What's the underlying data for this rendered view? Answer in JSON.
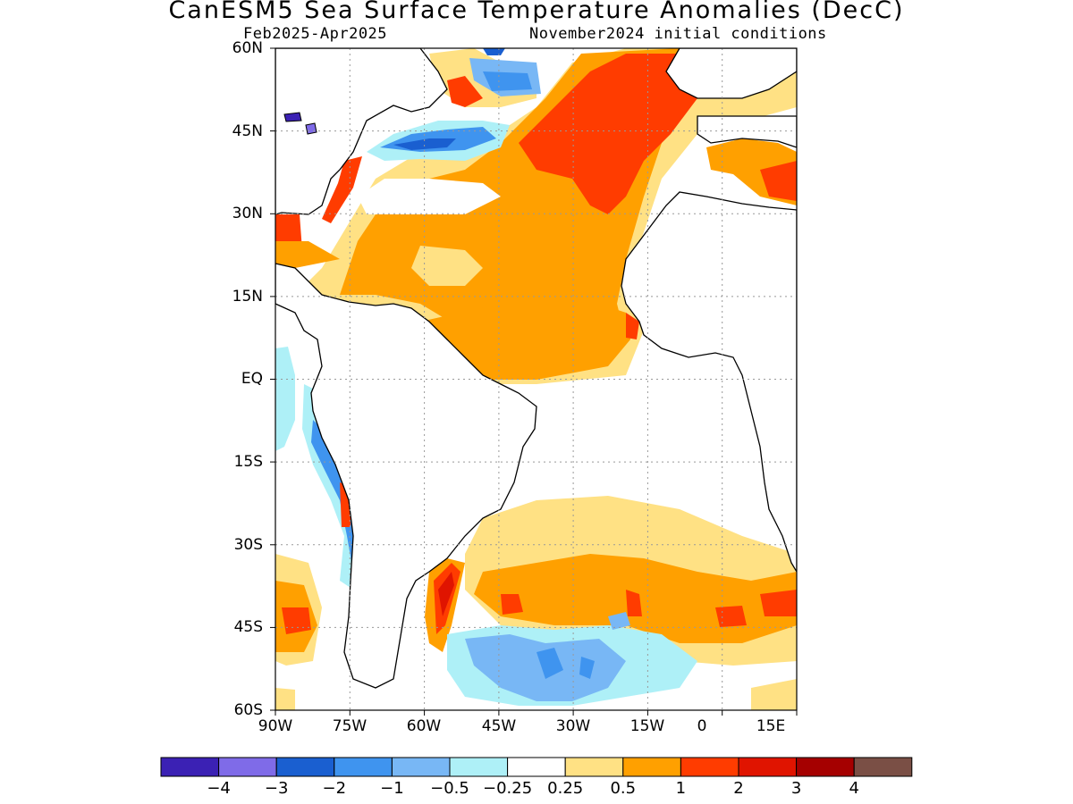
{
  "title": "CanESM5 Sea Surface Temperature Anomalies (DecC)",
  "subtitle_left": "Feb2025-Apr2025",
  "subtitle_right": "November2024 initial conditions",
  "lat_labels": [
    "60N",
    "45N",
    "30N",
    "15N",
    "EQ",
    "15S",
    "30S",
    "45S",
    "60S"
  ],
  "lon_labels": [
    "90W",
    "75W",
    "60W",
    "45W",
    "30W",
    "15W",
    "0",
    "15E"
  ],
  "colorbar": {
    "colors": [
      "#3b21b4",
      "#7f6be8",
      "#1a5fd0",
      "#3f94ef",
      "#78b7f5",
      "#aef0f7",
      "#ffffff",
      "#ffe184",
      "#ffa000",
      "#ff3c00",
      "#e01400",
      "#a50000",
      "#7a4f45"
    ],
    "labels": [
      "-4",
      "-3",
      "-2",
      "-1",
      "-0.5",
      "-0.25",
      "0.25",
      "0.5",
      "1",
      "2",
      "3",
      "4"
    ]
  },
  "map": {
    "lon_range": [
      -90,
      15
    ],
    "lat_range": [
      -60,
      60
    ],
    "land_color": "#ffffff",
    "grid": "dotted",
    "dominant_anomalies": [
      {
        "region": "North Atlantic subtropics",
        "level": "0.5 to 2"
      },
      {
        "region": "Tropical North Atlantic",
        "level": "0.5 to 1"
      },
      {
        "region": "Gulf Stream / Nova Scotia coast",
        "level": "-2 to -0.5"
      },
      {
        "region": "Brazil-Malvinas confluence",
        "level": "1 to 3"
      },
      {
        "region": "Southern Ocean south of 45S",
        "level": "-2 to -0.25"
      },
      {
        "region": "Peru / Chile coast",
        "level": "-2 to -0.5"
      }
    ]
  }
}
